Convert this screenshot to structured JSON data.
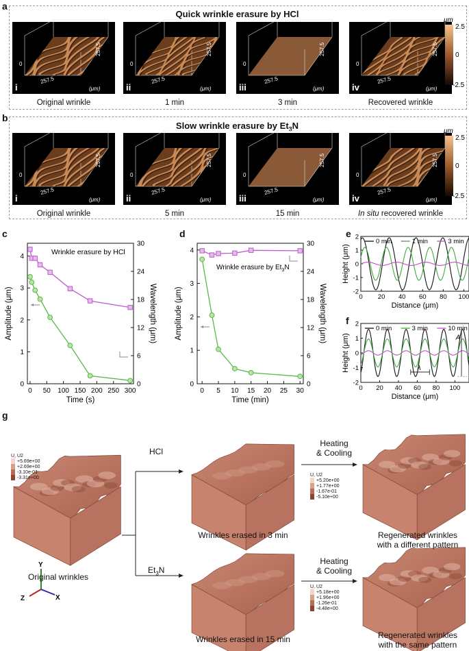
{
  "panel_labels": {
    "a": "a",
    "b": "b",
    "c": "c",
    "d": "d",
    "e": "e",
    "f": "f",
    "g": "g"
  },
  "panel_a": {
    "title": "Quick wrinkle erasure by HCl",
    "tiles": [
      {
        "roman": "i",
        "caption": "Original wrinkle"
      },
      {
        "roman": "ii",
        "caption": "1 min"
      },
      {
        "roman": "iii",
        "caption": "3 min"
      },
      {
        "roman": "iv",
        "caption": "Recovered wrinkle"
      }
    ],
    "axis": {
      "zero": "0",
      "extent": "257.5",
      "unit": "(μm)"
    },
    "colorbar": {
      "unit": "μm",
      "max": "2.5",
      "mid": "0",
      "min": "-2.5"
    }
  },
  "panel_b": {
    "title_prefix": "Slow wrinkle erasure by Et",
    "title_sub": "3",
    "title_suffix": "N",
    "tiles": [
      {
        "roman": "i",
        "caption": "Original wrinkle"
      },
      {
        "roman": "ii",
        "caption": "5 min"
      },
      {
        "roman": "iii",
        "caption": "15 min"
      },
      {
        "roman": "iv",
        "caption_italic": "In situ",
        "caption": " recovered wrinkle"
      }
    ],
    "axis": {
      "zero": "0",
      "extent": "257.5",
      "unit": "(μm)"
    },
    "colorbar": {
      "unit": "μm",
      "max": "2.5",
      "mid": "0",
      "min": "-2.5"
    }
  },
  "chart_data": [
    {
      "id": "c",
      "type": "line",
      "annotation": "Wrinkle erasure by HCl",
      "xlabel": "Time (s)",
      "ylabel": "Amplitude (μm)",
      "y2label": "Wavelength (μm)",
      "xlim": [
        -8,
        310
      ],
      "ylim": [
        0,
        4.4
      ],
      "y2lim": [
        0,
        30
      ],
      "xticks": [
        "0",
        "50",
        "100",
        "150",
        "200",
        "250",
        "300"
      ],
      "yticks": [
        "0",
        "1",
        "2",
        "3",
        "4"
      ],
      "y2ticks": [
        "0",
        "6",
        "12",
        "18",
        "24",
        "30"
      ],
      "series": [
        {
          "name": "Amplitude",
          "axis": "left",
          "color": "#59b84a",
          "marker": "circle",
          "x": [
            0,
            5,
            15,
            30,
            60,
            120,
            180,
            300
          ],
          "y": [
            3.35,
            3.18,
            2.93,
            2.65,
            2.08,
            1.2,
            0.25,
            0.1
          ]
        },
        {
          "name": "Wavelength",
          "axis": "right",
          "color": "#b95ec9",
          "marker": "square",
          "x": [
            0,
            5,
            15,
            30,
            60,
            120,
            180,
            300
          ],
          "y": [
            28.7,
            26.8,
            26.8,
            25.4,
            23.8,
            20.3,
            17.7,
            16.3
          ]
        }
      ]
    },
    {
      "id": "d",
      "type": "line",
      "annotation_prefix": "Wrinkle erasure by Et",
      "annotation_sub": "3",
      "annotation_suffix": "N",
      "xlabel": "Time (min)",
      "ylabel": "Amplitude (μm)",
      "y2label": "Wavelength (μm)",
      "xlim": [
        -1.5,
        31
      ],
      "ylim": [
        0,
        4.2
      ],
      "y2lim": [
        0,
        30
      ],
      "xticks": [
        "0",
        "5",
        "10",
        "15",
        "20",
        "25",
        "30"
      ],
      "yticks": [
        "0",
        "1",
        "2",
        "3",
        "4"
      ],
      "y2ticks": [
        "0",
        "6",
        "12",
        "18",
        "24",
        "30"
      ],
      "series": [
        {
          "name": "Amplitude",
          "axis": "left",
          "color": "#59b84a",
          "marker": "circle",
          "x": [
            0,
            3,
            5,
            10,
            15,
            30
          ],
          "y": [
            3.72,
            2.05,
            1.03,
            0.45,
            0.33,
            0.22
          ]
        },
        {
          "name": "Wavelength",
          "axis": "right",
          "color": "#b95ec9",
          "marker": "square",
          "x": [
            0,
            3,
            5,
            10,
            15,
            30
          ],
          "y": [
            28.4,
            27.5,
            27.8,
            27.9,
            28.5,
            28.4
          ]
        }
      ]
    },
    {
      "id": "e",
      "type": "line",
      "xlabel": "Distance (μm)",
      "ylabel": "Height (μm)",
      "xlim": [
        0,
        105
      ],
      "ylim": [
        -2,
        2
      ],
      "xticks": [
        "0",
        "20",
        "40",
        "60",
        "80",
        "100"
      ],
      "yticks": [
        "-2",
        "-1",
        "0",
        "1",
        "2"
      ],
      "series": [
        {
          "name": "0 min",
          "color": "#111111",
          "amplitude": 1.9,
          "period": 26,
          "phase": 1.2
        },
        {
          "name": "1 min",
          "color": "#3faa3f",
          "amplitude": 1.2,
          "period": 21,
          "phase": 0.4
        },
        {
          "name": "3 min",
          "color": "#c24ec9",
          "amplitude": 0.12,
          "period": 28,
          "phase": 0.0
        }
      ]
    },
    {
      "id": "f",
      "type": "line",
      "xlabel": "Distance (μm)",
      "ylabel": "Height (μm)",
      "xlim": [
        0,
        115
      ],
      "ylim": [
        -2,
        2
      ],
      "xticks": [
        "0",
        "20",
        "40",
        "60",
        "80",
        "100"
      ],
      "yticks": [
        "-2",
        "-1",
        "0",
        "1",
        "2"
      ],
      "annotations": {
        "wavelength": "λ",
        "amplitude": "A"
      },
      "series": [
        {
          "name": "0 min",
          "color": "#111111",
          "amplitude": 1.6,
          "period": 20,
          "phase": -1.0
        },
        {
          "name": "3 min",
          "color": "#3faa3f",
          "amplitude": 0.95,
          "period": 20,
          "phase": -1.0
        },
        {
          "name": "10 min",
          "color": "#c24ec9",
          "amplitude": 0.15,
          "period": 20,
          "phase": -1.0
        }
      ]
    }
  ],
  "panel_g": {
    "original_caption": "Original wrinkles",
    "hcl_label": "HCl",
    "et3n_prefix": "Et",
    "et3n_sub": "3",
    "et3n_suffix": "N",
    "heating_line1": "Heating",
    "heating_line2": "& Cooling",
    "erased_hcl": "Wrinkles erased in 3 min",
    "erased_et3n": "Wrinkles erased in 15 min",
    "regen_hcl_line1": "Regenerated wrinkles",
    "regen_hcl_line2": "with a different pattern",
    "regen_et3n_line1": "Regenerated wrinkles",
    "regen_et3n_line2": "with the same pattern",
    "axes": {
      "y": "Y",
      "z": "Z",
      "x": "X"
    },
    "legend1": {
      "title": "U, U2",
      "values": [
        "+5.69e+00",
        "+2.69e+00",
        "-3.10e-01",
        "-3.31e+00"
      ]
    },
    "legend2": {
      "title": "U, U2",
      "values": [
        "+5.20e+00",
        "+1.77e+00",
        "-1.67e-01",
        "-5.10e+00"
      ]
    },
    "legend3": {
      "title": "U, U2",
      "values": [
        "+5.18e+00",
        "+1.96e+00",
        "-1.26e-01",
        "-4.48e+00"
      ]
    }
  }
}
